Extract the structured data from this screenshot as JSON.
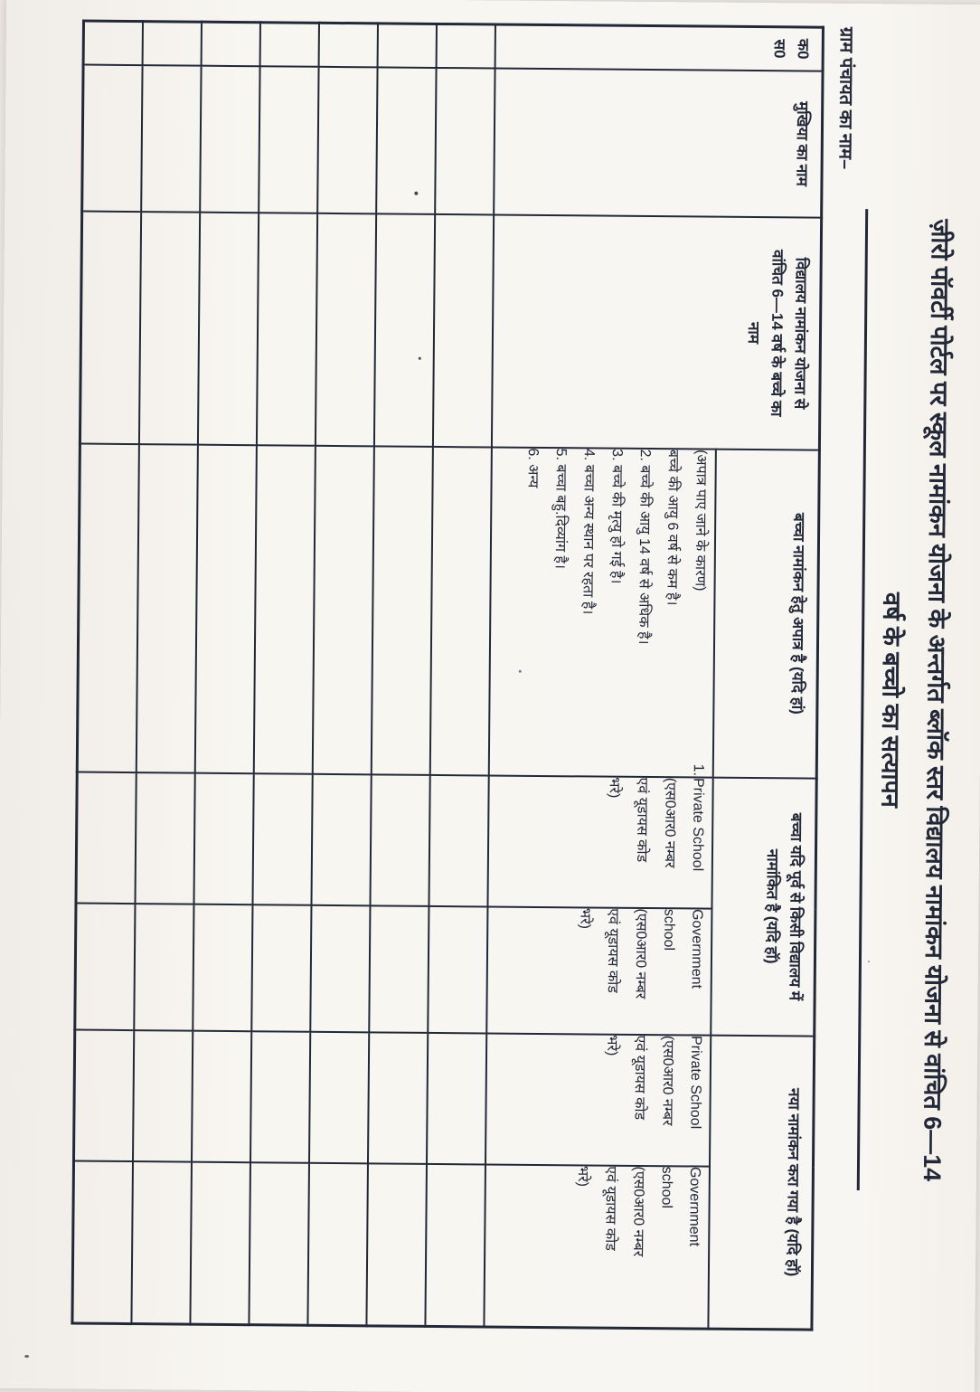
{
  "page": {
    "title_line1": "ज़ीरो पॉवर्टी पोर्टल पर स्कूल नामांकन योजना के अन्तर्गत ब्लॉक स्तर विद्यालय नामांकन योजना से वांचित 6—14",
    "title_line2": "वर्ष के बच्चो का सत्यापन",
    "gram_panchayat_label": "ग्राम पंचायत का नाम–"
  },
  "table": {
    "headers": {
      "serial": "क0 स0",
      "head_name": "मुखिया का नाम",
      "child_name": "विद्यालय नामांकन योजना से वांचित 6—14 वर्ष के बच्चे का नाम",
      "ineligible": "बच्चा नामांकन हेतु अपात्र है (यदि हां)",
      "already_enrolled": "बच्चा यदि पूर्व से किसी विद्यालय में नामांकित है (यदि हॉ)",
      "new_enrollment": "नया नामांकन करा गया है (यदि हॉ)"
    },
    "subheaders": {
      "private_school": "Private School (एस0आर0 नम्बर एवं यूडायस कोड भरे)",
      "government_school": "Government school (एस0आर0 नम्बर एवं यूडायस कोड भरे)"
    },
    "reasons": {
      "intro": "(अपात्र पाए जाने के कारण)",
      "first_item_number": "1.",
      "items": [
        "बच्चे की आयु 6 वर्ष से कम है।",
        "2. बच्चे की आयु 14 वर्ष से अधिक है।",
        "3. बच्चे की मृत्यु हो गई है।",
        "4. बच्चा अन्य स्थान पर रहता है।",
        "5. बच्चा बहु.दिव्यांग है।",
        "6. अन्य"
      ]
    },
    "data_row_count": 7,
    "columns_per_data_row": 8
  },
  "colors": {
    "ink": "#222838",
    "paper": "#f7f5f1"
  }
}
